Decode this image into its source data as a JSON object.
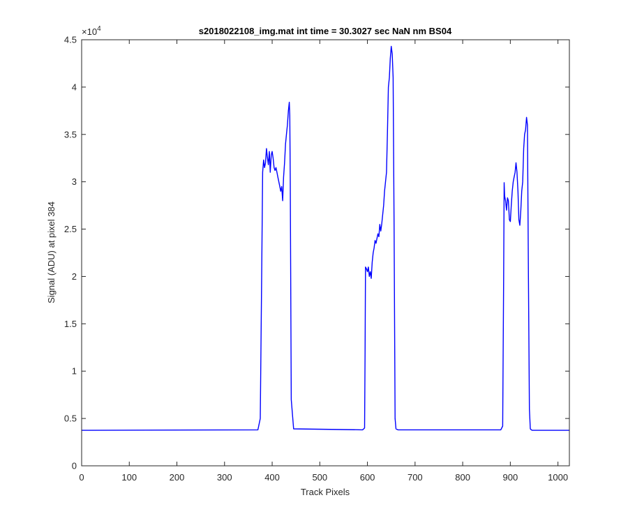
{
  "chart_data": {
    "type": "line",
    "title": "s2018022108_img.mat int time = 30.3027 sec  NaN nm BS04",
    "xlabel": "Track Pixels",
    "ylabel": "Signal (ADU) at pixel 384",
    "y_exponent_label": "×10",
    "y_exponent_power": "4",
    "xlim": [
      0,
      1024
    ],
    "ylim": [
      0,
      45000
    ],
    "xticks": [
      0,
      100,
      200,
      300,
      400,
      500,
      600,
      700,
      800,
      900,
      1000
    ],
    "xtick_labels": [
      "0",
      "100",
      "200",
      "300",
      "400",
      "500",
      "600",
      "700",
      "800",
      "900",
      "1000"
    ],
    "yticks": [
      0,
      5000,
      10000,
      15000,
      20000,
      25000,
      30000,
      35000,
      40000,
      45000
    ],
    "ytick_labels": [
      "0",
      "0.5",
      "1",
      "1.5",
      "2",
      "2.5",
      "3",
      "3.5",
      "4",
      "4.5"
    ],
    "grid": false,
    "series": [
      {
        "color": "#0000ff",
        "x": [
          0,
          370,
          375,
          378,
          380,
          382,
          384,
          386,
          388,
          390,
          392,
          394,
          396,
          398,
          400,
          402,
          404,
          406,
          408,
          410,
          412,
          414,
          416,
          418,
          420,
          422,
          424,
          426,
          428,
          430,
          432,
          434,
          436,
          437,
          438,
          440,
          445,
          590,
          594,
          595,
          596,
          598,
          600,
          602,
          604,
          606,
          608,
          610,
          612,
          614,
          616,
          618,
          620,
          622,
          624,
          626,
          628,
          630,
          632,
          634,
          636,
          638,
          640,
          642,
          644,
          646,
          648,
          650,
          652,
          654,
          656,
          658,
          660,
          664,
          880,
          884,
          886,
          887,
          888,
          890,
          892,
          894,
          896,
          898,
          900,
          902,
          904,
          906,
          908,
          910,
          912,
          914,
          916,
          918,
          920,
          922,
          924,
          926,
          928,
          930,
          932,
          934,
          936,
          938,
          940,
          942,
          944,
          946,
          948,
          950,
          952,
          956,
          1024
        ],
        "y": [
          3750,
          3800,
          5000,
          20000,
          31000,
          32300,
          31500,
          32000,
          33500,
          32600,
          31800,
          33200,
          31000,
          32800,
          33200,
          32500,
          31500,
          31200,
          31500,
          31000,
          30500,
          30000,
          29500,
          29000,
          29500,
          28000,
          30500,
          32000,
          34000,
          35000,
          36000,
          37500,
          38400,
          37000,
          30000,
          7000,
          3900,
          3800,
          4000,
          12000,
          21000,
          20800,
          20500,
          21000,
          20000,
          20500,
          19800,
          21500,
          22500,
          23000,
          23800,
          23500,
          24000,
          24500,
          24200,
          25500,
          24800,
          25500,
          26500,
          27500,
          29000,
          30000,
          31000,
          35000,
          40000,
          41000,
          43000,
          44300,
          43500,
          41000,
          25000,
          5000,
          3900,
          3800,
          3800,
          4200,
          20000,
          29900,
          28500,
          28000,
          27000,
          28300,
          28000,
          26000,
          25800,
          27500,
          29000,
          30000,
          30500,
          31000,
          32000,
          31000,
          29000,
          26000,
          25400,
          27000,
          29000,
          30000,
          33500,
          35000,
          35500,
          36800,
          36000,
          20000,
          6000,
          3900,
          3800,
          3750,
          3750,
          3750,
          3750,
          3750,
          3750
        ]
      }
    ]
  }
}
